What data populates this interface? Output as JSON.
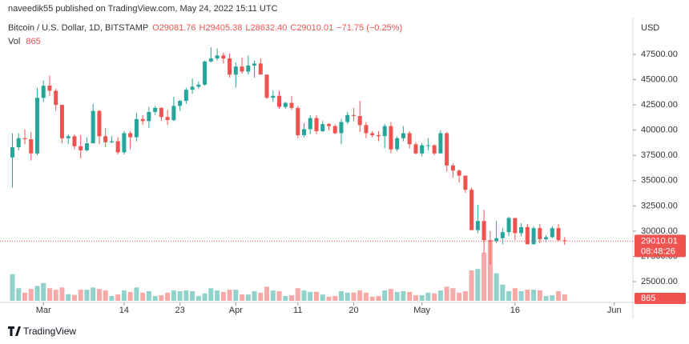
{
  "header": {
    "publisher": "naveedik55 published on TradingView.com, May 24, 2022 15:11 UTC"
  },
  "footer": {
    "brand": "TradingView"
  },
  "chart_data": {
    "type": "candlestick",
    "title": "Bitcoin / U.S. Dollar, 1D, BITSTAMP",
    "legend": [
      "O29081.76",
      "H29405.38",
      "L28632.40",
      "C29010.01",
      "−71.75 (−0.25%)"
    ],
    "currency": "USD",
    "up_color": "#26a69a",
    "down_color": "#ef5350",
    "x": [
      "2022-02-24",
      "2022-02-25",
      "2022-02-26",
      "2022-02-27",
      "2022-02-28",
      "2022-03-01",
      "2022-03-02",
      "2022-03-03",
      "2022-03-04",
      "2022-03-05",
      "2022-03-06",
      "2022-03-07",
      "2022-03-08",
      "2022-03-09",
      "2022-03-10",
      "2022-03-11",
      "2022-03-12",
      "2022-03-13",
      "2022-03-14",
      "2022-03-15",
      "2022-03-16",
      "2022-03-17",
      "2022-03-18",
      "2022-03-19",
      "2022-03-20",
      "2022-03-21",
      "2022-03-22",
      "2022-03-23",
      "2022-03-24",
      "2022-03-25",
      "2022-03-26",
      "2022-03-27",
      "2022-03-28",
      "2022-03-29",
      "2022-03-30",
      "2022-03-31",
      "2022-04-01",
      "2022-04-02",
      "2022-04-03",
      "2022-04-04",
      "2022-04-05",
      "2022-04-06",
      "2022-04-07",
      "2022-04-08",
      "2022-04-09",
      "2022-04-10",
      "2022-04-11",
      "2022-04-12",
      "2022-04-13",
      "2022-04-14",
      "2022-04-15",
      "2022-04-16",
      "2022-04-17",
      "2022-04-18",
      "2022-04-19",
      "2022-04-20",
      "2022-04-21",
      "2022-04-22",
      "2022-04-23",
      "2022-04-24",
      "2022-04-25",
      "2022-04-26",
      "2022-04-27",
      "2022-04-28",
      "2022-04-29",
      "2022-04-30",
      "2022-05-01",
      "2022-05-02",
      "2022-05-03",
      "2022-05-04",
      "2022-05-05",
      "2022-05-06",
      "2022-05-07",
      "2022-05-08",
      "2022-05-09",
      "2022-05-10",
      "2022-05-11",
      "2022-05-12",
      "2022-05-13",
      "2022-05-14",
      "2022-05-15",
      "2022-05-16",
      "2022-05-17",
      "2022-05-18",
      "2022-05-19",
      "2022-05-20",
      "2022-05-21",
      "2022-05-22",
      "2022-05-23",
      "2022-05-24"
    ],
    "open": [
      37300,
      38300,
      39200,
      39100,
      37700,
      43200,
      44400,
      43900,
      42500,
      39200,
      39400,
      38400,
      38000,
      38700,
      41900,
      39400,
      38800,
      38900,
      37800,
      39700,
      39300,
      41100,
      40900,
      41800,
      42200,
      41300,
      41000,
      42400,
      42900,
      44000,
      44300,
      44500,
      46800,
      47100,
      47400,
      47100,
      45500,
      46300,
      45800,
      46400,
      46600,
      45500,
      43200,
      43400,
      42300,
      42700,
      42200,
      39500,
      40100,
      41200,
      39900,
      40600,
      40400,
      39700,
      40800,
      41500,
      41400,
      40500,
      39700,
      39500,
      39400,
      40400,
      38100,
      39200,
      39700,
      38600,
      37700,
      38500,
      38500,
      37700,
      39700,
      36500,
      36000,
      35500,
      34100,
      30100,
      31000,
      29100,
      29000,
      29300,
      29900,
      31300,
      29800,
      30400,
      28700,
      30300,
      29200,
      29400,
      30300,
      29081.76
    ],
    "high": [
      39700,
      39700,
      40100,
      39800,
      44200,
      44900,
      45400,
      44100,
      42500,
      39600,
      39600,
      39500,
      39300,
      42600,
      42000,
      40200,
      39400,
      39300,
      39900,
      39900,
      41700,
      41500,
      42300,
      42400,
      42300,
      42000,
      43300,
      43000,
      44200,
      45100,
      44800,
      46900,
      48200,
      48100,
      47700,
      47600,
      46700,
      47200,
      47400,
      46900,
      47100,
      45500,
      43900,
      43900,
      42800,
      43400,
      42400,
      40700,
      41500,
      41500,
      40900,
      40700,
      40600,
      41100,
      41800,
      42200,
      42900,
      40800,
      39900,
      39900,
      40600,
      40800,
      39400,
      40400,
      39900,
      38800,
      38700,
      39200,
      38600,
      40000,
      39800,
      36700,
      36100,
      35500,
      34300,
      32600,
      32100,
      30000,
      31000,
      30300,
      31400,
      31300,
      30800,
      30700,
      30500,
      30700,
      29600,
      30500,
      30700,
      29405.38
    ],
    "low": [
      34300,
      38000,
      38600,
      37000,
      37500,
      42800,
      43400,
      41900,
      38700,
      38600,
      38100,
      37200,
      37900,
      38700,
      38600,
      38300,
      38700,
      37600,
      37600,
      38100,
      38900,
      40500,
      40200,
      41500,
      40900,
      40500,
      40900,
      41900,
      42600,
      43600,
      44100,
      44400,
      46700,
      46900,
      46600,
      45200,
      44200,
      45600,
      45500,
      45200,
      45600,
      43100,
      42800,
      42100,
      42100,
      42000,
      39200,
      39300,
      39600,
      39600,
      39800,
      40000,
      39600,
      38600,
      40600,
      40900,
      39800,
      39200,
      39300,
      38900,
      38200,
      37700,
      37900,
      38900,
      38200,
      37600,
      37400,
      38000,
      37500,
      37700,
      35900,
      35300,
      34800,
      33800,
      30100,
      29800,
      27800,
      26700,
      28800,
      28700,
      29500,
      29100,
      29500,
      28700,
      28700,
      28800,
      28900,
      29300,
      29000,
      28632.4
    ],
    "close": [
      38300,
      39200,
      39100,
      37700,
      43200,
      44400,
      43900,
      42500,
      39200,
      39400,
      38400,
      38000,
      38700,
      41900,
      39400,
      38800,
      38900,
      37800,
      39700,
      39300,
      41100,
      40900,
      41800,
      42200,
      41300,
      41000,
      42400,
      42900,
      44000,
      44300,
      44500,
      46800,
      47100,
      47400,
      47100,
      45500,
      46300,
      45800,
      46400,
      46600,
      45500,
      43200,
      43400,
      42300,
      42700,
      42200,
      39500,
      40100,
      41200,
      39900,
      40600,
      40400,
      39700,
      40800,
      41500,
      41400,
      40500,
      39700,
      39500,
      39400,
      40400,
      38100,
      39200,
      39700,
      38600,
      37700,
      38500,
      38500,
      37700,
      39700,
      36500,
      36000,
      35500,
      34100,
      30100,
      31000,
      29100,
      29000,
      29300,
      29900,
      31300,
      29800,
      30400,
      28700,
      30300,
      29200,
      29400,
      30300,
      29100,
      29010.01
    ],
    "volume": {
      "name": "Vol",
      "values": [
        3600,
        1700,
        1100,
        1600,
        2000,
        2400,
        1700,
        1500,
        1800,
        900,
        800,
        1500,
        1500,
        1800,
        1600,
        1400,
        650,
        850,
        1400,
        1200,
        1800,
        1100,
        1300,
        650,
        750,
        1100,
        1400,
        1300,
        1400,
        1300,
        650,
        1000,
        1700,
        1400,
        1200,
        1500,
        1500,
        850,
        850,
        1300,
        1100,
        1900,
        1400,
        1300,
        650,
        750,
        1700,
        1400,
        1200,
        1200,
        850,
        550,
        650,
        1300,
        1100,
        1100,
        1400,
        1100,
        550,
        650,
        1400,
        1600,
        1200,
        1300,
        1200,
        750,
        750,
        1100,
        1000,
        1400,
        1900,
        1700,
        1100,
        1300,
        4100,
        4300,
        6500,
        8100,
        3700,
        2200,
        1300,
        1700,
        1300,
        1500,
        1500,
        1400,
        650,
        750,
        1300,
        865
      ]
    },
    "last_price": {
      "value": 29010.01,
      "label": "29010.01"
    },
    "countdown": "08:48:26",
    "ylim": [
      23100,
      50670
    ],
    "yticks": [
      {
        "value": 25000,
        "label": "25000.00"
      },
      {
        "value": 27500,
        "label": "27500.00"
      },
      {
        "value": 30000,
        "label": "30000.00"
      },
      {
        "value": 32500,
        "label": "32500.00"
      },
      {
        "value": 35000,
        "label": "35000.00"
      },
      {
        "value": 37500,
        "label": "37500.00"
      },
      {
        "value": 40000,
        "label": "40000.00"
      },
      {
        "value": 42500,
        "label": "42500.00"
      },
      {
        "value": 45000,
        "label": "45000.00"
      },
      {
        "value": 47500,
        "label": "47500.00"
      }
    ],
    "xlim": [
      "2022-02-22",
      "2022-06-04"
    ],
    "xticks": [
      {
        "value": "2022-03-01",
        "label": "Mar"
      },
      {
        "value": "2022-03-14",
        "label": "14"
      },
      {
        "value": "2022-03-23",
        "label": "23"
      },
      {
        "value": "2022-04-01",
        "label": "Apr"
      },
      {
        "value": "2022-04-11",
        "label": "11"
      },
      {
        "value": "2022-04-20",
        "label": "20"
      },
      {
        "value": "2022-05-01",
        "label": "May"
      },
      {
        "value": "2022-05-16",
        "label": "16"
      },
      {
        "value": "2022-06-01",
        "label": "Jun"
      }
    ]
  }
}
